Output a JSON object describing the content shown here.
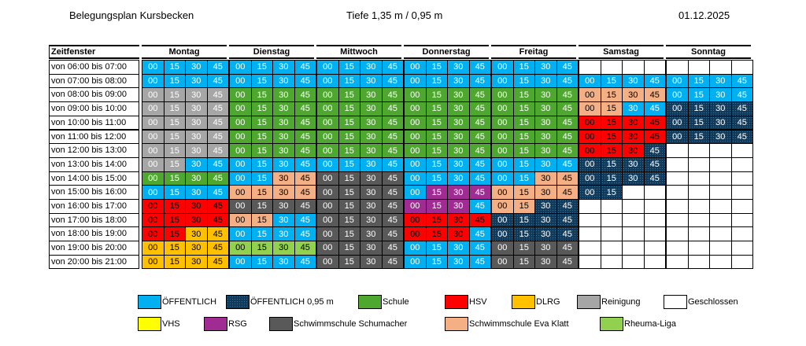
{
  "header": {
    "title": "Belegungsplan Kursbecken",
    "depth": "Tiefe 1,35 m / 0,95 m",
    "date": "01.12.2025"
  },
  "table": {
    "corner": "Zeitfenster",
    "days": [
      "Montag",
      "Dienstag",
      "Mittwoch",
      "Donnerstag",
      "Freitag",
      "Samstag",
      "Sonntag"
    ],
    "quarters": [
      "00",
      "15",
      "30",
      "45"
    ],
    "rows": [
      {
        "time": "von 06:00 bis 07:00",
        "slots": [
          [
            0,
            0,
            0,
            0
          ],
          [
            0,
            0,
            0,
            0
          ],
          [
            0,
            0,
            0,
            0
          ],
          [
            0,
            0,
            0,
            0
          ],
          [
            0,
            0,
            0,
            0
          ],
          [
            6,
            6,
            6,
            6
          ],
          [
            6,
            6,
            6,
            6
          ]
        ]
      },
      {
        "time": "von 07:00 bis 08:00",
        "slots": [
          [
            0,
            0,
            0,
            0
          ],
          [
            0,
            0,
            0,
            0
          ],
          [
            0,
            0,
            0,
            0
          ],
          [
            0,
            0,
            0,
            0
          ],
          [
            0,
            0,
            0,
            0
          ],
          [
            0,
            0,
            0,
            0
          ],
          [
            0,
            0,
            0,
            0
          ]
        ]
      },
      {
        "time": "von 08:00 bis 09:00",
        "slots": [
          [
            5,
            5,
            5,
            5
          ],
          [
            2,
            2,
            2,
            2
          ],
          [
            2,
            2,
            2,
            2
          ],
          [
            2,
            2,
            2,
            2
          ],
          [
            2,
            2,
            2,
            2
          ],
          [
            10,
            10,
            10,
            10
          ],
          [
            0,
            0,
            0,
            0
          ]
        ]
      },
      {
        "time": "von 09:00 bis 10:00",
        "slots": [
          [
            5,
            5,
            5,
            5
          ],
          [
            2,
            2,
            2,
            2
          ],
          [
            2,
            2,
            2,
            2
          ],
          [
            2,
            2,
            2,
            2
          ],
          [
            2,
            2,
            2,
            2
          ],
          [
            10,
            10,
            0,
            0
          ],
          [
            1,
            1,
            1,
            1
          ]
        ]
      },
      {
        "time": "von 10:00 bis 11:00",
        "slots": [
          [
            5,
            5,
            5,
            5
          ],
          [
            2,
            2,
            2,
            2
          ],
          [
            2,
            2,
            2,
            2
          ],
          [
            2,
            2,
            2,
            2
          ],
          [
            2,
            2,
            2,
            2
          ],
          [
            3,
            3,
            3,
            3
          ],
          [
            1,
            1,
            1,
            1
          ]
        ]
      },
      {
        "time": "von 11:00 bis 12:00",
        "slots": [
          [
            5,
            5,
            5,
            5
          ],
          [
            2,
            2,
            2,
            2
          ],
          [
            2,
            2,
            2,
            2
          ],
          [
            2,
            2,
            2,
            2
          ],
          [
            2,
            2,
            2,
            2
          ],
          [
            3,
            3,
            3,
            3
          ],
          [
            1,
            1,
            1,
            1
          ]
        ]
      },
      {
        "time": "von 12:00 bis 13:00",
        "slots": [
          [
            5,
            5,
            5,
            5
          ],
          [
            2,
            2,
            2,
            2
          ],
          [
            2,
            2,
            2,
            2
          ],
          [
            2,
            2,
            2,
            2
          ],
          [
            2,
            2,
            2,
            2
          ],
          [
            3,
            3,
            3,
            1
          ],
          [
            6,
            6,
            6,
            6
          ]
        ]
      },
      {
        "time": "von 13:00 bis 14:00",
        "slots": [
          [
            5,
            5,
            0,
            0
          ],
          [
            0,
            0,
            0,
            0
          ],
          [
            0,
            0,
            0,
            0
          ],
          [
            0,
            0,
            0,
            0
          ],
          [
            0,
            0,
            0,
            0
          ],
          [
            1,
            1,
            1,
            1
          ],
          [
            6,
            6,
            6,
            6
          ]
        ]
      },
      {
        "time": "von 14:00 bis 15:00",
        "slots": [
          [
            2,
            2,
            2,
            2
          ],
          [
            0,
            0,
            10,
            10
          ],
          [
            9,
            9,
            9,
            9
          ],
          [
            0,
            0,
            0,
            0
          ],
          [
            0,
            0,
            10,
            10
          ],
          [
            1,
            1,
            1,
            1
          ],
          [
            6,
            6,
            6,
            6
          ]
        ]
      },
      {
        "time": "von 15:00 bis 16:00",
        "slots": [
          [
            0,
            0,
            0,
            0
          ],
          [
            10,
            10,
            10,
            10
          ],
          [
            9,
            9,
            9,
            9
          ],
          [
            0,
            8,
            8,
            8
          ],
          [
            10,
            10,
            10,
            10
          ],
          [
            1,
            1,
            6,
            6
          ],
          [
            6,
            6,
            6,
            6
          ]
        ]
      },
      {
        "time": "von 16:00 bis 17:00",
        "slots": [
          [
            3,
            3,
            3,
            3
          ],
          [
            9,
            9,
            9,
            9
          ],
          [
            9,
            9,
            9,
            9
          ],
          [
            8,
            8,
            8,
            0
          ],
          [
            10,
            10,
            1,
            1
          ],
          [
            6,
            6,
            6,
            6
          ],
          [
            6,
            6,
            6,
            6
          ]
        ]
      },
      {
        "time": "von 17:00 bis 18:00",
        "slots": [
          [
            3,
            3,
            3,
            3
          ],
          [
            10,
            10,
            0,
            0
          ],
          [
            9,
            9,
            9,
            9
          ],
          [
            3,
            3,
            3,
            3
          ],
          [
            1,
            1,
            1,
            1
          ],
          [
            6,
            6,
            6,
            6
          ],
          [
            6,
            6,
            6,
            6
          ]
        ]
      },
      {
        "time": "von 18:00 bis 19:00",
        "slots": [
          [
            3,
            3,
            4,
            4
          ],
          [
            0,
            0,
            0,
            0
          ],
          [
            9,
            9,
            9,
            9
          ],
          [
            3,
            3,
            3,
            0
          ],
          [
            1,
            1,
            1,
            1
          ],
          [
            6,
            6,
            6,
            6
          ],
          [
            6,
            6,
            6,
            6
          ]
        ]
      },
      {
        "time": "von 19:00 bis 20:00",
        "slots": [
          [
            4,
            4,
            4,
            4
          ],
          [
            11,
            11,
            11,
            11
          ],
          [
            9,
            9,
            9,
            9
          ],
          [
            0,
            0,
            0,
            0
          ],
          [
            9,
            9,
            9,
            9
          ],
          [
            6,
            6,
            6,
            6
          ],
          [
            6,
            6,
            6,
            6
          ]
        ]
      },
      {
        "time": "von 20:00 bis 21:00",
        "slots": [
          [
            4,
            4,
            4,
            4
          ],
          [
            0,
            0,
            0,
            0
          ],
          [
            9,
            9,
            9,
            9
          ],
          [
            0,
            0,
            0,
            0
          ],
          [
            9,
            9,
            9,
            9
          ],
          [
            6,
            6,
            6,
            6
          ],
          [
            6,
            6,
            6,
            6
          ]
        ]
      }
    ]
  },
  "legend": [
    {
      "label": "ÖFFENTLICH",
      "color": "#00b0f0",
      "text_color": "#ffffff"
    },
    {
      "label": "ÖFFENTLICH 0,95 m",
      "color": "#0e3a5c",
      "text_color": "#ffffff"
    },
    {
      "label": "Schule",
      "color": "#4ea72e",
      "text_color": "#ffffff"
    },
    {
      "label": "HSV",
      "color": "#ff0000",
      "text_color": "#000000"
    },
    {
      "label": "DLRG",
      "color": "#ffc000",
      "text_color": "#000000"
    },
    {
      "label": "Reinigung",
      "color": "#a6a6a6",
      "text_color": "#ffffff"
    },
    {
      "label": "Geschlossen",
      "color": "#ffffff",
      "text_color": "#000000"
    },
    {
      "label": "VHS",
      "color": "#ffff00",
      "text_color": "#000000"
    },
    {
      "label": "RSG",
      "color": "#a02b93",
      "text_color": "#ffffff"
    },
    {
      "label": "Schwimmschule Schumacher",
      "color": "#595959",
      "text_color": "#ffffff"
    },
    {
      "label": "Schwimmschule Eva Klatt",
      "color": "#f4b084",
      "text_color": "#000000"
    },
    {
      "label": "Rheuma-Liga",
      "color": "#92d050",
      "text_color": "#000000"
    }
  ]
}
